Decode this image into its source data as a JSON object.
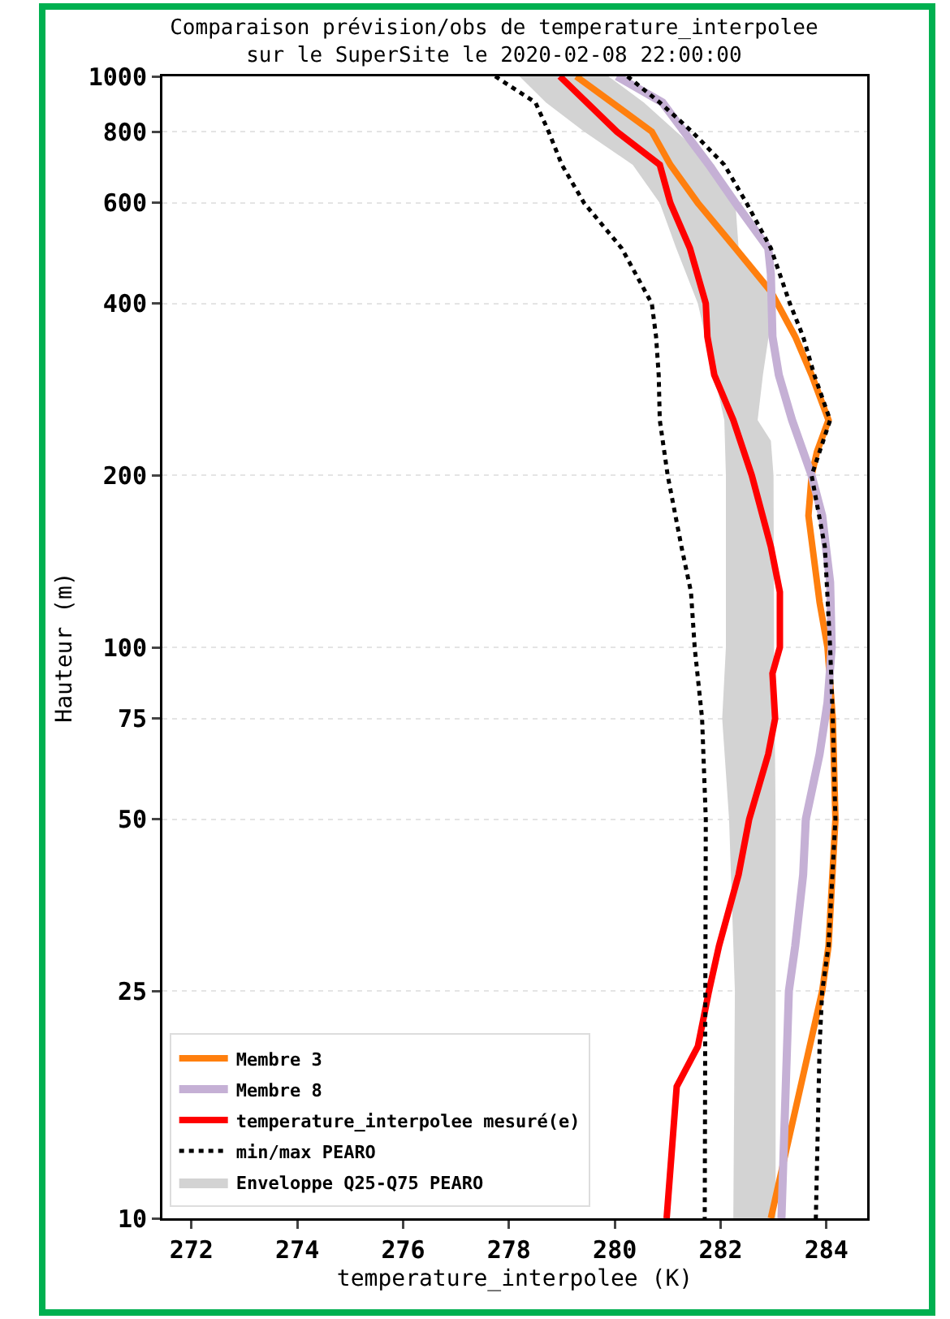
{
  "chart_data": {
    "type": "line",
    "title": "Comparaison prévision/obs de temperature_interpolee\nsur le SuperSite le 2020-02-08 22:00:00",
    "xlabel": "temperature_interpolee (K)",
    "ylabel": "Hauteur (m)",
    "xlim": [
      271.45,
      284.77
    ],
    "xticks": [
      272,
      274,
      276,
      278,
      280,
      282,
      284
    ],
    "ylim": [
      10,
      1000
    ],
    "yticks": [
      10,
      25,
      50,
      75,
      100,
      200,
      400,
      600,
      800,
      1000
    ],
    "log": "y",
    "grid": "y",
    "legend": "bottom left",
    "line_style": "solid",
    "series": [
      {
        "name": "Membre 3",
        "color": "#ff7f0e",
        "x": [
          279.27,
          280.7,
          281.05,
          281.57,
          282.28,
          282.95,
          283.41,
          283.72,
          284.04,
          283.82,
          283.72,
          283.66,
          283.87,
          284.02,
          284.12,
          284.17,
          284.04,
          283.92,
          282.95
        ],
        "values": [
          1000,
          800,
          700,
          600,
          500,
          420,
          350,
          300,
          250,
          220,
          200,
          170,
          120,
          100,
          75,
          50,
          30,
          25,
          10
        ]
      },
      {
        "name": "Membre 8",
        "color": "#c5b0d5",
        "x": [
          280.04,
          280.9,
          281.31,
          281.78,
          282.28,
          282.9,
          282.95,
          282.98,
          283.1,
          283.35,
          283.72,
          283.92,
          284.07,
          284.1,
          284.02,
          283.87,
          283.61,
          283.56,
          283.41,
          283.29,
          283.15
        ],
        "values": [
          1000,
          900,
          800,
          700,
          600,
          500,
          450,
          350,
          300,
          250,
          200,
          170,
          130,
          100,
          80,
          65,
          50,
          40,
          30,
          25,
          10
        ]
      },
      {
        "name": "temperature_interpolee mesuré(e)",
        "color": "#ff0000",
        "x": [
          278.96,
          280.04,
          280.85,
          281.05,
          281.42,
          281.72,
          281.75,
          281.88,
          282.24,
          282.59,
          282.95,
          283.12,
          283.12,
          282.98,
          283.03,
          282.9,
          282.54,
          282.34,
          281.97,
          281.78,
          281.57,
          281.17,
          280.98
        ],
        "values": [
          1000,
          800,
          700,
          600,
          500,
          400,
          350,
          300,
          250,
          200,
          150,
          125,
          100,
          90,
          75,
          65,
          50,
          40,
          30,
          25,
          20,
          17,
          10
        ]
      },
      {
        "name": "min/max PEARO",
        "color": "#000000",
        "line_style": "dotted",
        "x": [
          277.74,
          278.5,
          278.75,
          279.0,
          279.42,
          280.13,
          280.7,
          280.78,
          280.83,
          280.85,
          281.0,
          281.26,
          281.44,
          281.51,
          281.65,
          281.72,
          281.7
        ],
        "values": [
          1000,
          900,
          800,
          700,
          600,
          500,
          400,
          350,
          300,
          250,
          200,
          150,
          125,
          100,
          75,
          50,
          10
        ]
      },
      {
        "color": "#000000",
        "line_style": "dotted",
        "x": [
          280.24,
          280.85,
          281.46,
          282.07,
          282.49,
          282.95,
          283.31,
          283.56,
          283.77,
          284.07,
          283.87,
          283.72,
          283.97,
          284.07,
          284.12,
          284.17,
          284.04,
          283.92,
          283.87,
          283.8
        ],
        "values": [
          1000,
          900,
          800,
          700,
          600,
          500,
          400,
          350,
          300,
          250,
          220,
          200,
          150,
          100,
          75,
          50,
          30,
          25,
          20,
          10
        ]
      },
      {
        "name": "Enveloppe Q25-Q75 PEARO",
        "type": "area",
        "color": "#d3d3d3",
        "x": [
          278.2,
          278.7,
          279.42,
          280.34,
          280.85,
          281.16,
          281.57,
          281.88,
          282.07,
          282.1,
          282.1,
          282.03,
          282.16,
          282.27,
          282.24,
          283.04,
          283.04,
          283.01,
          283.0,
          282.95,
          282.7,
          282.8,
          283.0,
          282.74,
          282.34,
          282.28,
          281.88,
          281.16,
          280.55,
          279.88
        ],
        "values": [
          1000,
          900,
          800,
          700,
          600,
          500,
          400,
          300,
          250,
          200,
          100,
          75,
          50,
          25,
          10,
          10,
          50,
          100,
          200,
          230,
          250,
          300,
          400,
          450,
          500,
          600,
          700,
          800,
          900,
          1000
        ]
      }
    ]
  }
}
